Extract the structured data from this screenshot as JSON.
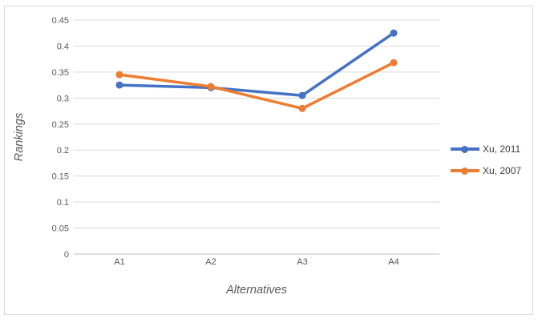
{
  "chart": {
    "background_color": "#ffffff",
    "frame_border_color": "#d9d9d9",
    "gridline_color": "#d9d9d9",
    "axis_line_color": "#bfbfbf",
    "tick_label_color": "#595959",
    "axis_title_color": "#595959",
    "legend_text_color": "#404040"
  },
  "chart_data": {
    "type": "line",
    "title": "",
    "xlabel": "Alternatives",
    "ylabel": "Rankings",
    "categories": [
      "A1",
      "A2",
      "A3",
      "A4"
    ],
    "series": [
      {
        "name": "Xu, 2011",
        "color": "#4472C4",
        "values": [
          0.325,
          0.32,
          0.305,
          0.425
        ]
      },
      {
        "name": "Xu, 2007",
        "color": "#ED7D31",
        "values": [
          0.345,
          0.322,
          0.28,
          0.368
        ]
      }
    ],
    "ylim": [
      0,
      0.45
    ],
    "ytick_step": 0.05,
    "ytick_labels": [
      "0",
      "0.05",
      "0.1",
      "0.15",
      "0.2",
      "0.25",
      "0.3",
      "0.35",
      "0.4",
      "0.45"
    ],
    "grid": true,
    "legend_position": "right",
    "marker": "circle"
  }
}
